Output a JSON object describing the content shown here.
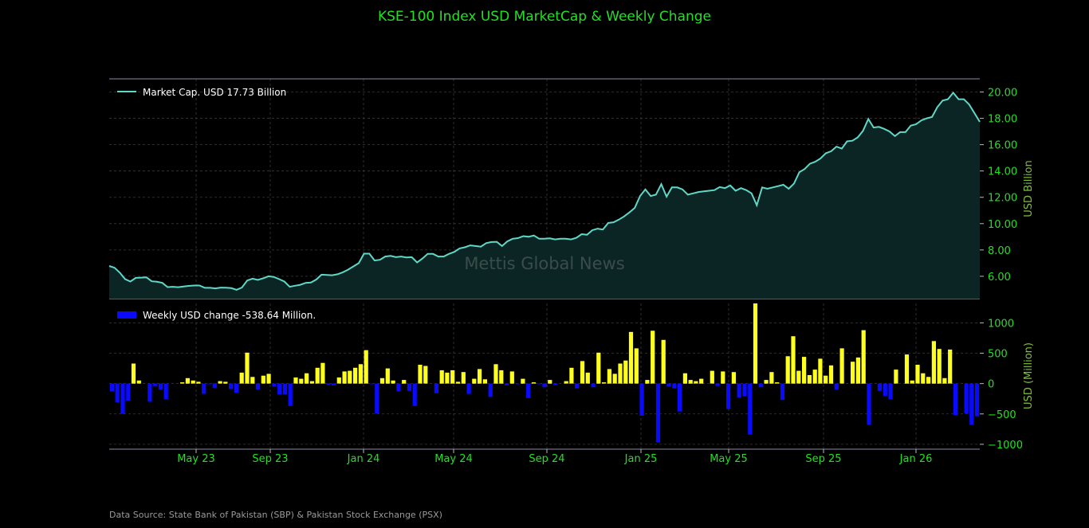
{
  "colors": {
    "background": "#000000",
    "line": "#5fd8c8",
    "area": "#0b2424",
    "bar_positive": "#ffff1f",
    "bar_negative": "#0a0aff",
    "tick_text": "#22e022",
    "axis_label": "#7fbf3f",
    "grid": "#3a3a3a"
  },
  "watermark": "Mettis Global News",
  "source_note": "Data Source: State Bank of Pakistan (SBP) & Pakistan Stock Exchange (PSX)",
  "chart_data": [
    {
      "type": "area",
      "title": "KSE-100 Index USD MarketCap & Weekly Change",
      "xlabel": "",
      "ylabel": "USD Billion",
      "ylim": [
        4.3,
        21.0
      ],
      "yticks": [
        6,
        8,
        10,
        12,
        14,
        16,
        18,
        20
      ],
      "ytick_labels": [
        "6.00",
        "8.00",
        "10.00",
        "12.00",
        "14.00",
        "16.00",
        "18.00",
        "20.00"
      ],
      "grid": true,
      "legend_position": "top-left",
      "series": [
        {
          "name": "Market Cap. USD 17.73 Billion",
          "values": [
            6.78,
            6.65,
            6.27,
            5.78,
            5.6,
            5.88,
            5.9,
            5.92,
            5.62,
            5.58,
            5.5,
            5.18,
            5.2,
            5.17,
            5.22,
            5.27,
            5.3,
            5.3,
            5.12,
            5.12,
            5.08,
            5.14,
            5.13,
            5.1,
            4.97,
            5.15,
            5.68,
            5.82,
            5.72,
            5.85,
            6.0,
            5.95,
            5.78,
            5.6,
            5.2,
            5.28,
            5.35,
            5.5,
            5.52,
            5.75,
            6.12,
            6.1,
            6.08,
            6.15,
            6.3,
            6.5,
            6.75,
            7.0,
            7.72,
            7.72,
            7.2,
            7.25,
            7.5,
            7.55,
            7.45,
            7.5,
            7.43,
            7.45,
            7.05,
            7.35,
            7.7,
            7.7,
            7.5,
            7.5,
            7.7,
            7.85,
            8.12,
            8.2,
            8.35,
            8.3,
            8.25,
            8.52,
            8.6,
            8.62,
            8.3,
            8.65,
            8.85,
            8.9,
            9.05,
            9.0,
            9.1,
            8.85,
            8.85,
            8.88,
            8.8,
            8.85,
            8.85,
            8.8,
            8.92,
            9.2,
            9.15,
            9.5,
            9.62,
            9.55,
            10.05,
            10.1,
            10.3,
            10.55,
            10.85,
            11.2,
            12.1,
            12.6,
            12.1,
            12.2,
            13.0,
            12.05,
            12.75,
            12.75,
            12.6,
            12.2,
            12.3,
            12.4,
            12.45,
            12.5,
            12.55,
            12.78,
            12.7,
            12.9,
            12.5,
            12.7,
            12.55,
            12.3,
            11.4,
            12.75,
            12.65,
            12.75,
            12.85,
            12.95,
            12.65,
            13.05,
            13.9,
            14.15,
            14.55,
            14.7,
            14.95,
            15.35,
            15.5,
            15.85,
            15.7,
            16.25,
            16.3,
            16.55,
            17.05,
            17.95,
            17.3,
            17.35,
            17.2,
            17.0,
            16.65,
            16.95,
            16.95,
            17.45,
            17.55,
            17.85,
            18.0,
            18.1,
            18.85,
            19.35,
            19.45,
            19.95,
            19.45,
            19.45,
            19.05,
            18.4,
            17.73
          ]
        }
      ],
      "watermark": "Mettis Global News"
    },
    {
      "type": "bar",
      "title": "",
      "xlabel": "",
      "ylabel": "USD (Million)",
      "ylim": [
        -1080,
        1320
      ],
      "yticks": [
        -1000,
        -500,
        0,
        500,
        1000
      ],
      "ytick_labels": [
        "−1000",
        "−500",
        "0",
        "500",
        "1000"
      ],
      "x_tick_labels": [
        "May 23",
        "Sep 23",
        "Jan 24",
        "May 24",
        "Sep 24",
        "Jan 25",
        "May 25",
        "Sep 25",
        "Jan 26"
      ],
      "grid": true,
      "legend_position": "top-left",
      "series": [
        {
          "name": "Weekly USD change -538.64 Million.",
          "values": [
            -130,
            -310,
            -500,
            -280,
            330,
            50,
            0,
            -300,
            -40,
            -100,
            -260,
            0,
            0,
            20,
            90,
            50,
            30,
            -170,
            -10,
            -70,
            40,
            30,
            -90,
            -150,
            180,
            510,
            110,
            -100,
            130,
            160,
            -50,
            -180,
            -180,
            -370,
            100,
            80,
            170,
            40,
            260,
            340,
            -20,
            -30,
            100,
            200,
            210,
            260,
            320,
            550,
            -10,
            -490,
            90,
            250,
            50,
            -130,
            60,
            -120,
            -370,
            310,
            290,
            0,
            -160,
            220,
            180,
            220,
            30,
            190,
            -170,
            80,
            240,
            70,
            -220,
            320,
            220,
            -30,
            200,
            -10,
            80,
            -240,
            20,
            -10,
            -60,
            60,
            -20,
            0,
            40,
            260,
            -80,
            370,
            180,
            -60,
            510,
            20,
            240,
            160,
            330,
            380,
            850,
            580,
            -530,
            60,
            870,
            -970,
            720,
            -50,
            -80,
            -460,
            170,
            60,
            40,
            80,
            0,
            210,
            -40,
            200,
            -420,
            190,
            -230,
            -210,
            -840,
            1320,
            -60,
            60,
            190,
            20,
            -270,
            450,
            780,
            210,
            440,
            140,
            230,
            410,
            130,
            300,
            -100,
            580,
            0,
            360,
            430,
            880,
            -680,
            0,
            -120,
            -200,
            -260,
            230,
            0,
            480,
            50,
            310,
            170,
            110,
            700,
            570,
            90,
            560,
            -520,
            0,
            -490,
            -680,
            -539
          ]
        }
      ]
    }
  ]
}
